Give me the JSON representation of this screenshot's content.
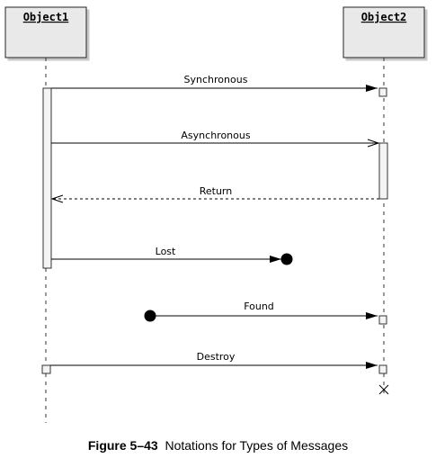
{
  "objects": [
    {
      "name": "Object1"
    },
    {
      "name": "Object2"
    }
  ],
  "messages": {
    "synchronous": "Synchronous",
    "asynchronous": "Asynchronous",
    "return": "Return",
    "lost": "Lost",
    "found": "Found",
    "destroy": "Destroy"
  },
  "caption": {
    "figure_number": "Figure 5–43",
    "text": "Notations for Types of Messages"
  }
}
